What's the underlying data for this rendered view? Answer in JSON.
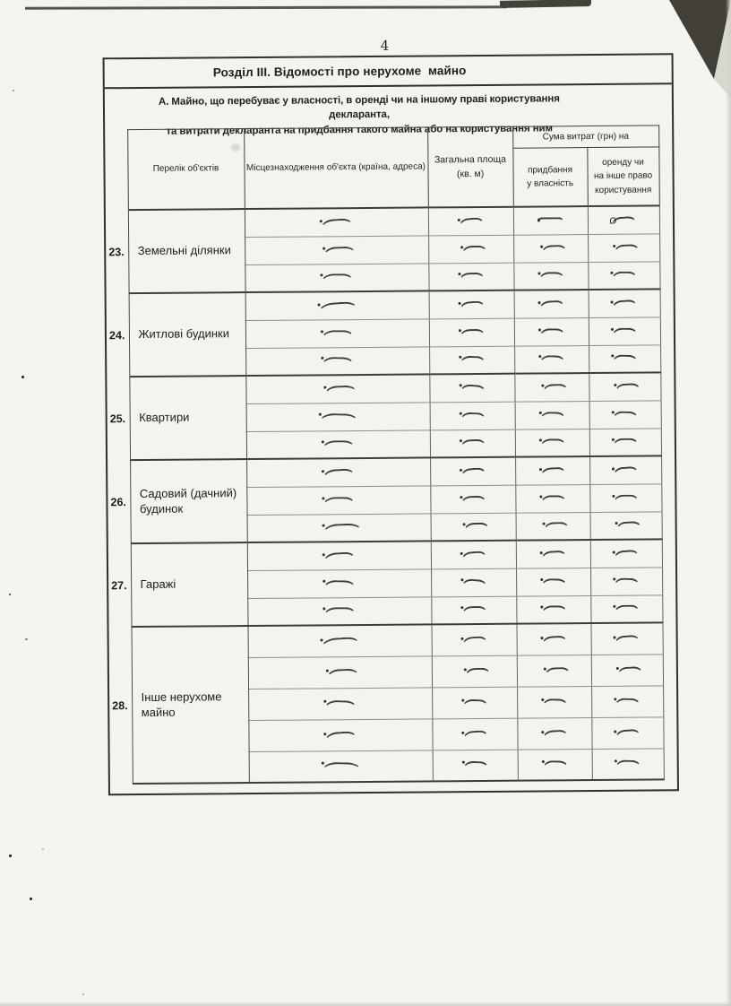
{
  "page": {
    "number": "4"
  },
  "section": {
    "title": "Розділ III. Відомості про нерухоме  майно",
    "subtitle_line1": "А. Майно, що перебуває у власності, в оренді чи на іншому праві користування декларанта,",
    "subtitle_line2": "та витрати декларанта на придбання такого майна або на користування ним"
  },
  "table": {
    "headers": {
      "objects": "Перелік об'єктів",
      "location": "Місцезнаходження об'єкта (країна, адреса)",
      "area_line1": "Загальна площа",
      "area_line2": "(кв. м)",
      "costs_group": "Сума витрат (грн) на",
      "purchase_line1": "придбання",
      "purchase_line2": "у власність",
      "rent_line1": "оренду чи",
      "rent_line2": "на інше право",
      "rent_line3": "користування"
    },
    "items": [
      {
        "no": "23.",
        "label": "Земельні ділянки",
        "rows": 3
      },
      {
        "no": "24.",
        "label": "Житлові будинки",
        "rows": 3
      },
      {
        "no": "25.",
        "label": "Квартири",
        "rows": 3
      },
      {
        "no": "26.",
        "label": "Садовий (дачний) будинок",
        "rows": 3
      },
      {
        "no": "27.",
        "label": "Гаражі",
        "rows": 3
      },
      {
        "no": "28.",
        "label": "Інше нерухоме майно",
        "rows": 5
      }
    ],
    "cell_entry_mark": "— (handwritten dash in every cell)"
  }
}
